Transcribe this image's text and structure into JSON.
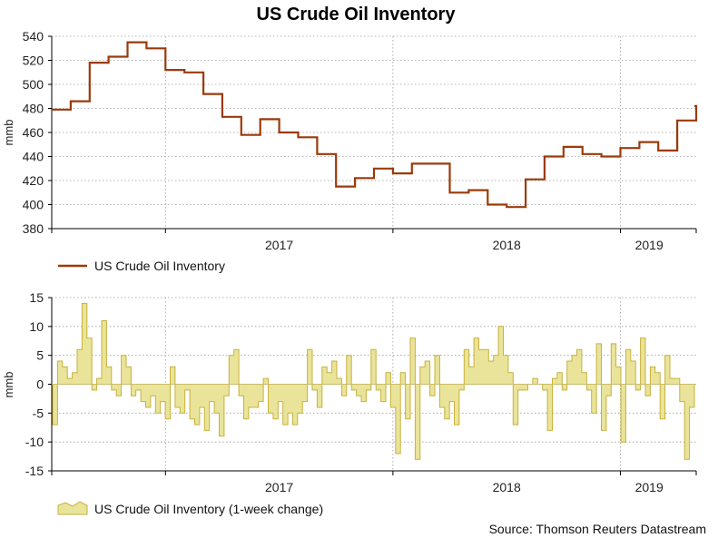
{
  "title": "US Crude Oil Inventory",
  "source": "Source: Thomson Reuters Datastream",
  "colors": {
    "level": "#9b3a0a",
    "change_fill": "#e9e49a",
    "change_line": "#c9b13c",
    "zero_line": "#c8bb6a",
    "grid": "#9a9a9a",
    "axis": "#000000"
  },
  "chart_data": [
    {
      "type": "line",
      "title": "US Crude Oil Inventory",
      "ylabel": "mmb",
      "xlabel": "",
      "ylim": [
        380,
        540
      ],
      "yticks": [
        380,
        400,
        420,
        440,
        460,
        480,
        500,
        520,
        540
      ],
      "x_ticks": [
        "2017",
        "2018",
        "2019"
      ],
      "x_range": [
        "2016-07",
        "2019-05"
      ],
      "grid": true,
      "legend": "bottom-left",
      "series": [
        {
          "name": "US Crude Oil Inventory",
          "x": [
            "2016-07",
            "2016-08",
            "2016-09",
            "2016-10",
            "2016-11",
            "2016-12",
            "2017-01",
            "2017-02",
            "2017-03",
            "2017-04",
            "2017-05",
            "2017-06",
            "2017-07",
            "2017-08",
            "2017-09",
            "2017-10",
            "2017-11",
            "2017-12",
            "2018-01",
            "2018-02",
            "2018-03",
            "2018-04",
            "2018-05",
            "2018-06",
            "2018-07",
            "2018-08",
            "2018-09",
            "2018-10",
            "2018-11",
            "2018-12",
            "2019-01",
            "2019-02",
            "2019-03",
            "2019-04",
            "2019-05"
          ],
          "values": [
            479,
            486,
            518,
            523,
            535,
            530,
            512,
            510,
            492,
            473,
            458,
            471,
            460,
            456,
            442,
            415,
            422,
            430,
            426,
            434,
            434,
            410,
            412,
            400,
            398,
            421,
            440,
            448,
            442,
            440,
            447,
            452,
            445,
            470,
            482
          ]
        }
      ]
    },
    {
      "type": "area",
      "title": "",
      "ylabel": "mmb",
      "xlabel": "",
      "ylim": [
        -15,
        15
      ],
      "yticks": [
        -15,
        -10,
        -5,
        0,
        5,
        10,
        15
      ],
      "x_ticks": [
        "2017",
        "2018",
        "2019"
      ],
      "x_range": [
        "2016-07",
        "2019-05"
      ],
      "grid": true,
      "legend": "bottom-left",
      "series": [
        {
          "name": "US Crude Oil Inventory (1-week change)",
          "values": [
            -7,
            4,
            3,
            1,
            2,
            6,
            14,
            8,
            -1,
            1,
            11,
            3,
            -1,
            -2,
            5,
            3,
            -2,
            -1,
            -3,
            -4,
            -2,
            -5,
            -3,
            -6,
            3,
            -4,
            -5,
            -1,
            -6,
            -7,
            -4,
            -8,
            -3,
            -5,
            -9,
            -2,
            5,
            6,
            -2,
            -6,
            -4,
            -4,
            -3,
            1,
            -5,
            -6,
            -3,
            -7,
            -5,
            -7,
            -5,
            -3,
            6,
            -1,
            -4,
            3,
            2,
            4,
            1,
            -2,
            5,
            -1,
            -2,
            -3,
            -1,
            6,
            -1,
            -3,
            2,
            -4,
            -12,
            2,
            -6,
            8,
            -13,
            3,
            4,
            -2,
            5,
            -4,
            -6,
            -3,
            -7,
            -1,
            6,
            3,
            8,
            6,
            6,
            4,
            5,
            10,
            5,
            2,
            -7,
            -1,
            -1,
            0,
            1,
            0,
            -1,
            -8,
            1,
            2,
            -1,
            4,
            5,
            6,
            2,
            -1,
            -5,
            7,
            -8,
            -2,
            7,
            3,
            -10,
            6,
            4,
            -1,
            8,
            -2,
            3,
            2,
            -6,
            5,
            1,
            1,
            -3,
            -13,
            -4
          ]
        }
      ]
    }
  ]
}
